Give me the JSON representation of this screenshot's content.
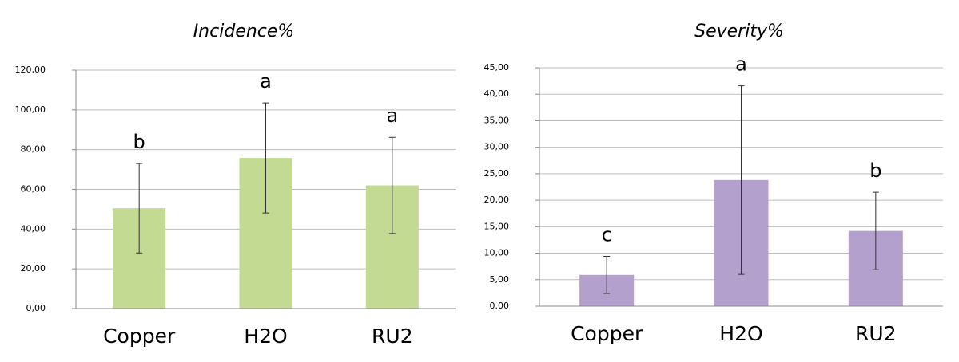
{
  "chart_data": [
    {
      "type": "bar",
      "title": "Incidence%",
      "categories": [
        "Copper",
        "H2O",
        "RU2"
      ],
      "values": [
        50.5,
        75.8,
        62
      ],
      "errors": [
        22.5,
        27.7,
        24.2
      ],
      "letters": [
        "b",
        "a",
        "a"
      ],
      "color": "#c3da93",
      "ylim": [
        0,
        120
      ],
      "grid": true,
      "yticks": [
        {
          "value": 0,
          "label": "0,00"
        },
        {
          "value": 20,
          "label": "20,00"
        },
        {
          "value": 40,
          "label": "40,00"
        },
        {
          "value": 60,
          "label": "60,00"
        },
        {
          "value": 80,
          "label": "80,00"
        },
        {
          "value": 100,
          "label": "100,00"
        },
        {
          "value": 120,
          "label": "120,00"
        }
      ]
    },
    {
      "type": "bar",
      "title": "Severity%",
      "categories": [
        "Copper",
        "H2O",
        "RU2"
      ],
      "values": [
        5.9,
        23.8,
        14.2
      ],
      "errors": [
        3.5,
        17.8,
        7.3
      ],
      "letters": [
        "c",
        "a",
        "b"
      ],
      "color": "#b4a0cc",
      "ylim": [
        0,
        45
      ],
      "grid": true,
      "yticks": [
        {
          "value": 0,
          "label": "0.00"
        },
        {
          "value": 5,
          "label": "5,00"
        },
        {
          "value": 10,
          "label": "10,00"
        },
        {
          "value": 15,
          "label": "15,00"
        },
        {
          "value": 20,
          "label": "20,00"
        },
        {
          "value": 25,
          "label": "25,00"
        },
        {
          "value": 30,
          "label": "30,00"
        },
        {
          "value": 35,
          "label": "35,00"
        },
        {
          "value": 40,
          "label": "40,00"
        },
        {
          "value": 45,
          "label": "45,00"
        }
      ]
    }
  ]
}
